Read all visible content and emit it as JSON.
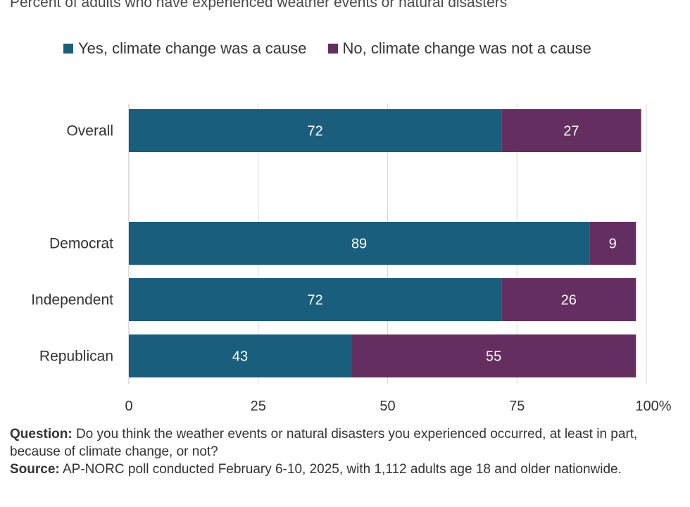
{
  "chart_data": {
    "type": "bar",
    "orientation": "horizontal",
    "stacked": true,
    "subtitle": "Percent of adults who have experienced weather events or natural disasters",
    "categories": [
      "Overall",
      "Democrat",
      "Independent",
      "Republican"
    ],
    "series": [
      {
        "name": "Yes, climate change was a cause",
        "color": "#1a5e7e",
        "values": [
          72,
          89,
          72,
          43
        ]
      },
      {
        "name": "No, climate change was not a cause",
        "color": "#652e60",
        "values": [
          27,
          9,
          26,
          55
        ]
      }
    ],
    "xlim": [
      0,
      100
    ],
    "xticks": [
      "0",
      "25",
      "50",
      "75",
      "100%"
    ],
    "grid": true,
    "legend": "top"
  },
  "footnote": {
    "question_label": "Question:",
    "question_text": " Do you think the weather events or natural disasters you experienced occurred, at least in part, because of climate change, or not?",
    "source_label": "Source:",
    "source_text": " AP-NORC poll conducted February 6-10, 2025, with 1,112 adults age 18 and older nationwide."
  }
}
